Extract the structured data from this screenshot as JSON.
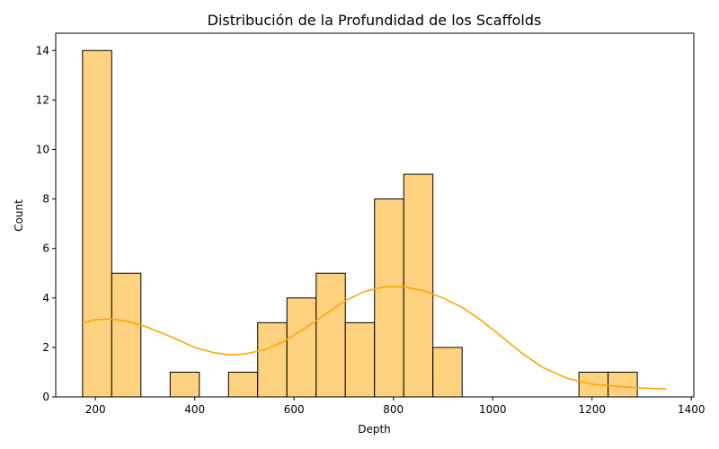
{
  "chart_data": {
    "type": "bar",
    "title": "Distribución de la Profundidad de los Scaffolds",
    "xlabel": "Depth",
    "ylabel": "Count",
    "bin_edges": [
      174.0,
      232.8,
      291.6,
      350.4,
      409.2,
      468.0,
      526.8,
      585.6,
      644.4,
      703.2,
      762.0,
      820.8,
      879.6,
      938.4,
      997.2,
      1056.0,
      1114.8,
      1173.6,
      1232.4,
      1291.2,
      1350.0
    ],
    "counts": [
      14,
      5,
      0,
      1,
      0,
      1,
      3,
      4,
      5,
      3,
      8,
      9,
      2,
      0,
      0,
      0,
      0,
      1,
      1,
      0
    ],
    "xlim": [
      120,
      1405
    ],
    "ylim": [
      0,
      14.7
    ],
    "x_ticks": [
      200,
      400,
      600,
      800,
      1000,
      1200,
      1400
    ],
    "y_ticks": [
      0,
      2,
      4,
      6,
      8,
      10,
      12,
      14
    ],
    "kde": {
      "x": [
        174,
        200,
        230,
        260,
        300,
        350,
        400,
        440,
        470,
        500,
        540,
        580,
        620,
        660,
        700,
        740,
        780,
        820,
        860,
        900,
        940,
        980,
        1020,
        1060,
        1100,
        1150,
        1200,
        1250,
        1300,
        1350
      ],
      "y": [
        3.0,
        3.12,
        3.15,
        3.08,
        2.85,
        2.45,
        2.0,
        1.78,
        1.7,
        1.73,
        1.9,
        2.25,
        2.75,
        3.3,
        3.85,
        4.25,
        4.45,
        4.45,
        4.3,
        4.0,
        3.6,
        3.05,
        2.4,
        1.75,
        1.2,
        0.75,
        0.52,
        0.42,
        0.36,
        0.32
      ]
    },
    "colors": {
      "bar_fill": "#ffd280",
      "bar_edge": "#000000",
      "kde_line": "#ffa500"
    },
    "grid": false,
    "legend": "none"
  }
}
